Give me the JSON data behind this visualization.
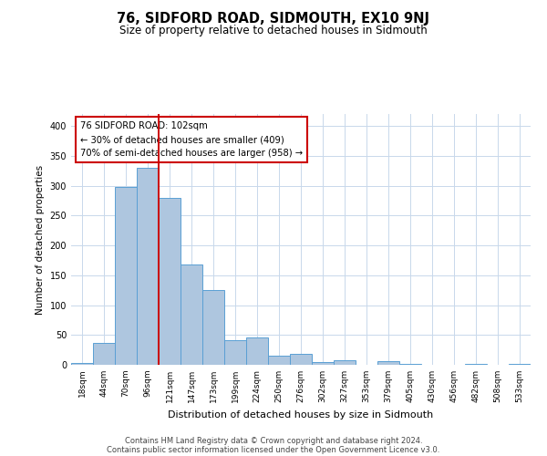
{
  "title": "76, SIDFORD ROAD, SIDMOUTH, EX10 9NJ",
  "subtitle": "Size of property relative to detached houses in Sidmouth",
  "xlabel": "Distribution of detached houses by size in Sidmouth",
  "ylabel": "Number of detached properties",
  "bin_labels": [
    "18sqm",
    "44sqm",
    "70sqm",
    "96sqm",
    "121sqm",
    "147sqm",
    "173sqm",
    "199sqm",
    "224sqm",
    "250sqm",
    "276sqm",
    "302sqm",
    "327sqm",
    "353sqm",
    "379sqm",
    "405sqm",
    "430sqm",
    "456sqm",
    "482sqm",
    "508sqm",
    "533sqm"
  ],
  "bar_heights": [
    3,
    37,
    298,
    330,
    279,
    168,
    125,
    42,
    46,
    16,
    18,
    5,
    7,
    0,
    6,
    1,
    0,
    0,
    2,
    0,
    2
  ],
  "bar_color": "#aec6df",
  "bar_edge_color": "#5a9fd4",
  "property_line_x": 3.5,
  "property_line_color": "#cc0000",
  "annotation_text": "76 SIDFORD ROAD: 102sqm\n← 30% of detached houses are smaller (409)\n70% of semi-detached houses are larger (958) →",
  "annotation_box_color": "#ffffff",
  "annotation_box_edge": "#cc0000",
  "ylim": [
    0,
    420
  ],
  "footer_line1": "Contains HM Land Registry data © Crown copyright and database right 2024.",
  "footer_line2": "Contains public sector information licensed under the Open Government Licence v3.0.",
  "background_color": "#ffffff",
  "grid_color": "#c8d8eb",
  "title_fontsize": 10.5,
  "subtitle_fontsize": 8.5
}
